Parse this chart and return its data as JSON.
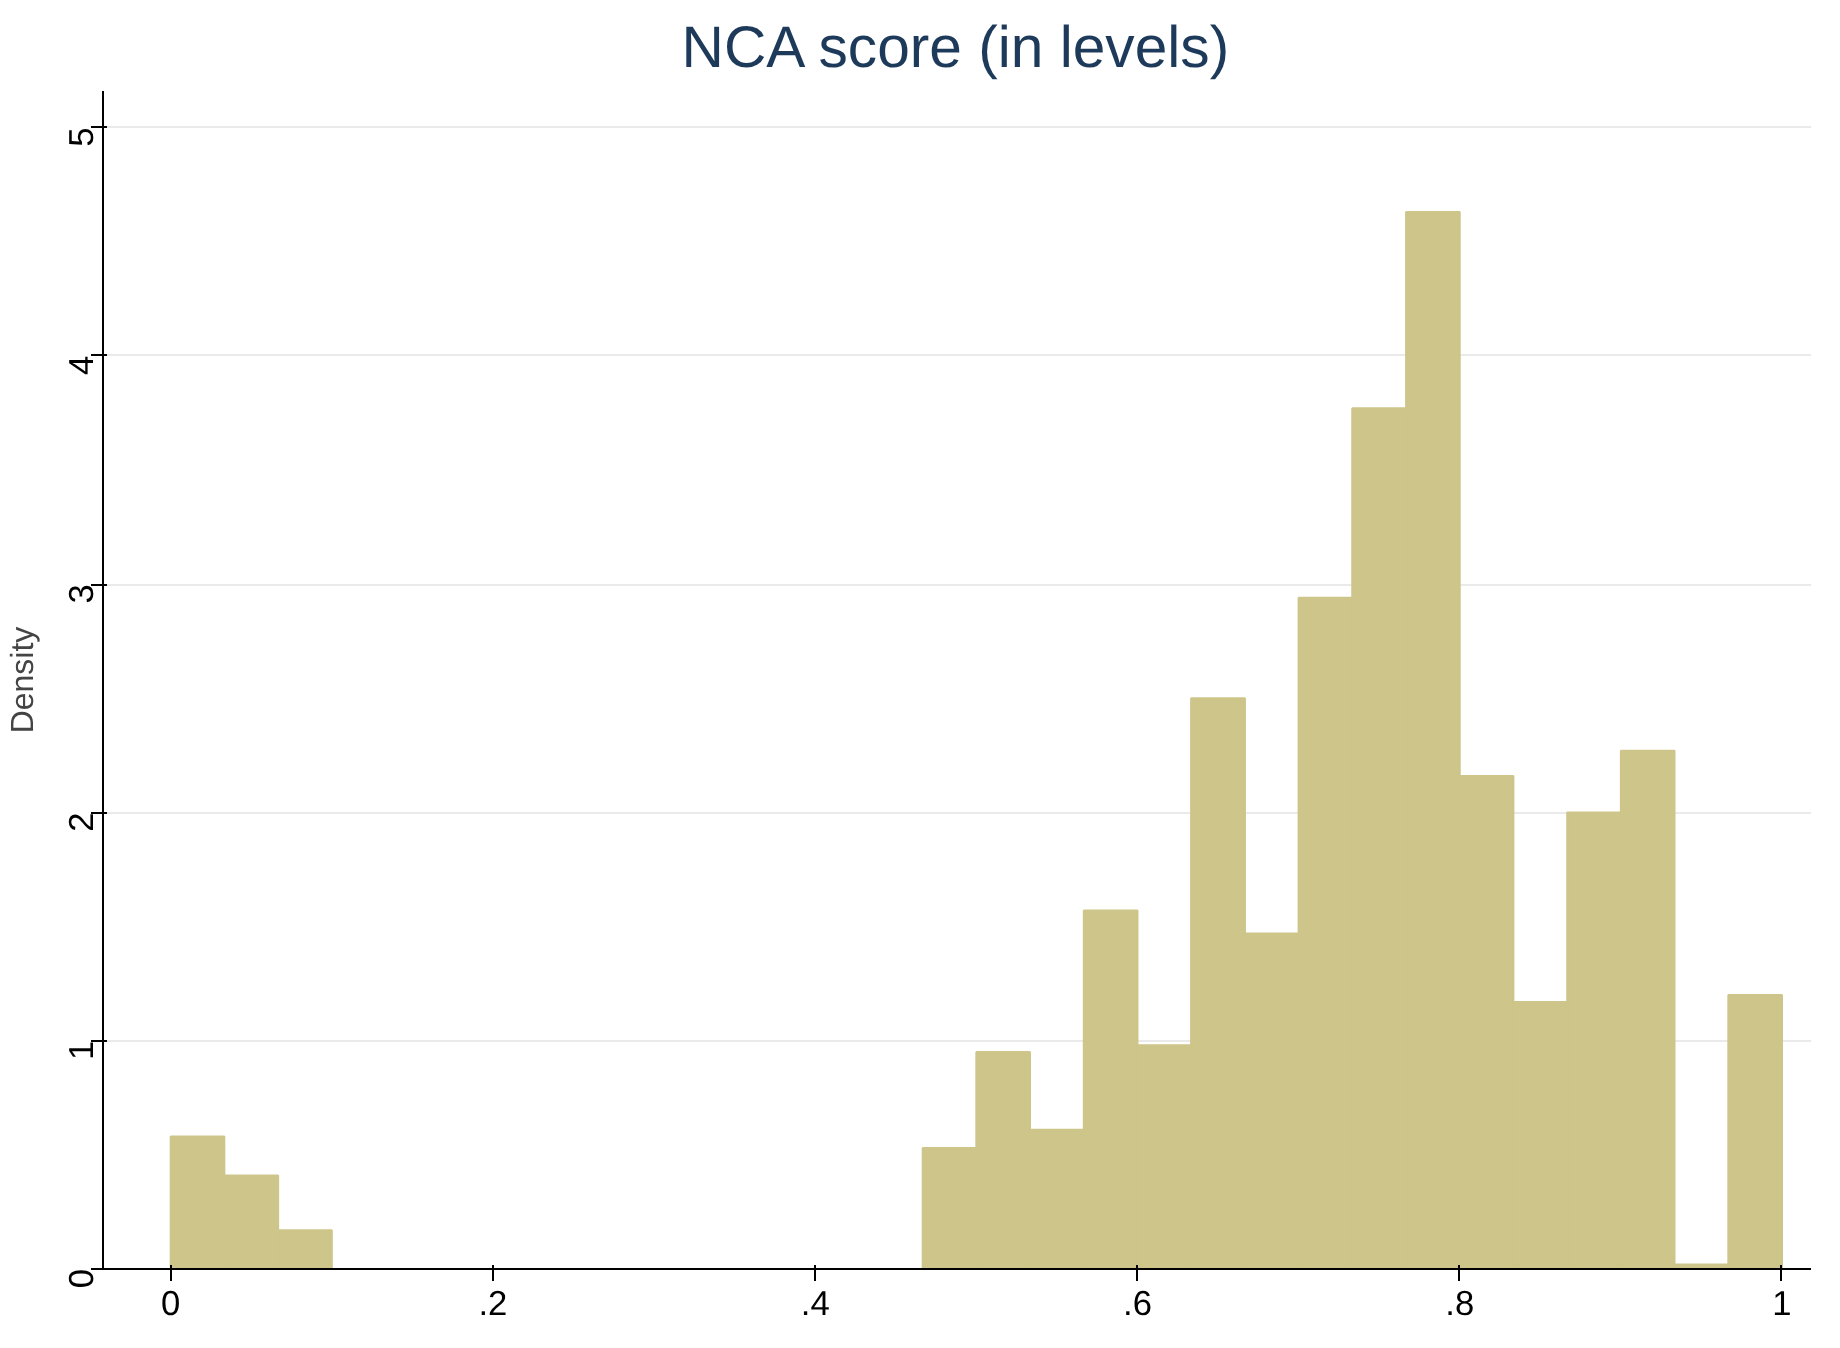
{
  "chart_data": {
    "type": "histogram",
    "title": "NCA score (in levels)",
    "ylabel": "Density",
    "bins": [
      0,
      0.0333,
      0.0667,
      0.1,
      0.1333,
      0.1667,
      0.2,
      0.2333,
      0.2667,
      0.3,
      0.3333,
      0.3667,
      0.4,
      0.4333,
      0.4667,
      0.5,
      0.5333,
      0.5667,
      0.6,
      0.6333,
      0.6667,
      0.7,
      0.7333,
      0.7667,
      0.8,
      0.8333,
      0.8667,
      0.9,
      0.9333,
      0.9667,
      1
    ],
    "values": [
      0.58,
      0.41,
      0.17,
      0,
      0,
      0,
      0,
      0,
      0,
      0,
      0,
      0,
      0,
      0,
      0.53,
      0.95,
      0.61,
      1.57,
      0.98,
      2.5,
      1.47,
      2.94,
      3.77,
      4.63,
      2.16,
      1.17,
      2.0,
      2.27,
      0.02,
      1.2
    ],
    "color": "#cdc589",
    "xlim": [
      -0.042,
      1.018
    ],
    "ylim": [
      0,
      5.16
    ],
    "xticks": [
      0,
      {
        "value": 0.2,
        "label": ".2"
      },
      {
        "value": 0.4,
        "label": ".4"
      },
      {
        "value": 0.6,
        "label": ".6"
      },
      {
        "value": 0.8,
        "label": ".8"
      },
      1
    ],
    "yticks": [
      0,
      1,
      2,
      3,
      4,
      5
    ],
    "grid": "y"
  }
}
